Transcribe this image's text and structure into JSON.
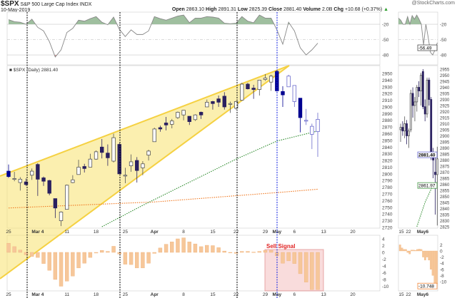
{
  "header": {
    "symbol": "$SPX",
    "name": "S&P 500 Large Cap Index",
    "exchange": "INDX",
    "date": "10-May-2019",
    "open_label": "Open",
    "open": "2863.10",
    "high_label": "High",
    "high": "2891.31",
    "low_label": "Low",
    "low": "2825.39",
    "close_label": "Close",
    "close": "2881.40",
    "volume_label": "Volume",
    "volume": "2.0B",
    "chg_label": "Chg",
    "chg": "+10.68 (+0.37%)",
    "watermark": "@StockCharts.com"
  },
  "colors": {
    "up_arrow": "#2a9d2a",
    "sell": "#e02020",
    "wedge": "#f5d142",
    "ma50": "#2e8b2e",
    "ma200": "#f07820",
    "candle": "#2a2060",
    "candle_blue": "#000090",
    "hist": "#f6c79a"
  },
  "chart_data": [
    {
      "type": "line",
      "title": "Williams %R (top panel)",
      "yticks": [
        "-20",
        "-50",
        "-80"
      ],
      "ylim": [
        -100,
        0
      ],
      "values": [
        -11,
        -15,
        -16,
        -20,
        -10,
        -26,
        -33,
        -54,
        -84,
        -70,
        -36,
        -28,
        -12,
        -14,
        -9,
        -5,
        -16,
        -21,
        -6,
        -30,
        -44,
        -31,
        -40,
        -40,
        -33,
        -5,
        -9,
        -12,
        -8,
        -4,
        -2,
        -17,
        -8,
        -8,
        -5,
        -6,
        -8,
        -18,
        -19,
        -18,
        -5,
        -14,
        -17,
        -2,
        -8,
        -8,
        -31,
        -59,
        -16,
        -33,
        -66,
        -80,
        -70,
        -57
      ]
    },
    {
      "type": "candlestick",
      "legend": "$SPX (Daily) 2881.40",
      "ylim": [
        2720,
        2960
      ],
      "yticks": [
        "2950",
        "2940",
        "2930",
        "2920",
        "2910",
        "2900",
        "2890",
        "2880",
        "2870",
        "2860",
        "2850",
        "2840",
        "2830",
        "2820",
        "2810",
        "2800",
        "2790",
        "2780",
        "2770",
        "2760",
        "2750",
        "2740",
        "2730",
        "2720"
      ],
      "xticks": [
        {
          "label": "25",
          "i": 0,
          "bold": false
        },
        {
          "label": "Mar 4",
          "i": 5,
          "bold": true
        },
        {
          "label": "11",
          "i": 10,
          "bold": false
        },
        {
          "label": "18",
          "i": 15,
          "bold": false
        },
        {
          "label": "25",
          "i": 20,
          "bold": false
        },
        {
          "label": "Apr",
          "i": 25,
          "bold": true
        },
        {
          "label": "8",
          "i": 30,
          "bold": false
        },
        {
          "label": "15",
          "i": 35,
          "bold": false
        },
        {
          "label": "22",
          "i": 39,
          "bold": false
        },
        {
          "label": "29",
          "i": 44,
          "bold": false
        },
        {
          "label": "May",
          "i": 46,
          "bold": true
        },
        {
          "label": "6",
          "i": 49,
          "bold": false
        },
        {
          "label": "13",
          "i": 54,
          "bold": false
        },
        {
          "label": "20",
          "i": 59,
          "bold": false
        }
      ],
      "ohlc": [
        [
          2804,
          2814,
          2794,
          2796
        ],
        [
          2792,
          2803,
          2789,
          2793
        ],
        [
          2787,
          2795,
          2775,
          2792
        ],
        [
          2788,
          2793,
          2782,
          2784
        ],
        [
          2798,
          2808,
          2791,
          2804
        ],
        [
          2814,
          2816,
          2767,
          2792
        ],
        [
          2794,
          2796,
          2782,
          2789
        ],
        [
          2790,
          2791,
          2768,
          2771
        ],
        [
          2763,
          2763,
          2734,
          2749
        ],
        [
          2730,
          2744,
          2722,
          2743
        ],
        [
          2747,
          2784,
          2747,
          2783
        ],
        [
          2787,
          2798,
          2786,
          2791
        ],
        [
          2799,
          2821,
          2799,
          2810
        ],
        [
          2811,
          2815,
          2802,
          2808
        ],
        [
          2810,
          2830,
          2810,
          2822
        ],
        [
          2822,
          2835,
          2821,
          2833
        ],
        [
          2840,
          2852,
          2823,
          2832
        ],
        [
          2831,
          2844,
          2812,
          2824
        ],
        [
          2819,
          2860,
          2817,
          2854
        ],
        [
          2844,
          2846,
          2800,
          2800
        ],
        [
          2797,
          2809,
          2786,
          2798
        ],
        [
          2812,
          2829,
          2803,
          2818
        ],
        [
          2820,
          2825,
          2787,
          2805
        ],
        [
          2809,
          2819,
          2798,
          2815
        ],
        [
          2828,
          2836,
          2820,
          2834
        ],
        [
          2848,
          2869,
          2848,
          2867
        ],
        [
          2869,
          2872,
          2863,
          2867
        ],
        [
          2876,
          2885,
          2865,
          2873
        ],
        [
          2874,
          2882,
          2868,
          2879
        ],
        [
          2884,
          2893,
          2882,
          2892
        ],
        [
          2888,
          2895,
          2880,
          2895
        ],
        [
          2886,
          2886,
          2873,
          2878
        ],
        [
          2881,
          2889,
          2879,
          2888
        ],
        [
          2892,
          2893,
          2882,
          2888
        ],
        [
          2900,
          2911,
          2900,
          2907
        ],
        [
          2908,
          2909,
          2896,
          2905
        ],
        [
          2912,
          2917,
          2900,
          2907
        ],
        [
          2916,
          2922,
          2896,
          2900
        ],
        [
          2904,
          2908,
          2891,
          2905
        ],
        [
          2898,
          2909,
          2896,
          2908
        ],
        [
          2910,
          2936,
          2909,
          2934
        ],
        [
          2934,
          2936,
          2926,
          2927
        ],
        [
          2928,
          2933,
          2912,
          2926
        ],
        [
          2926,
          2940,
          2917,
          2940
        ],
        [
          2941,
          2949,
          2939,
          2943
        ],
        [
          2937,
          2948,
          2924,
          2946
        ],
        [
          2953,
          2955,
          2923,
          2924
        ],
        [
          2923,
          2931,
          2900,
          2918
        ],
        [
          2930,
          2948,
          2930,
          2946
        ],
        [
          2908,
          2932,
          2900,
          2932
        ],
        [
          2913,
          2913,
          2862,
          2884
        ],
        [
          2879,
          2897,
          2873,
          2880
        ],
        [
          2859,
          2875,
          2837,
          2871
        ],
        [
          2863.1,
          2891.31,
          2825.39,
          2881.4
        ]
      ],
      "ma50": [
        [
          16,
          2721
        ],
        [
          23,
          2753
        ],
        [
          39,
          2822
        ],
        [
          46,
          2849
        ],
        [
          53,
          2864
        ]
      ],
      "ma200": [
        [
          0,
          2749
        ],
        [
          25,
          2758
        ],
        [
          46,
          2772
        ],
        [
          53,
          2777
        ]
      ]
    },
    {
      "type": "bar",
      "title": "Histogram (bottom panel)",
      "yticks": [
        "4",
        "2",
        "0",
        "-2",
        "-4",
        "-6",
        "-8",
        "-10"
      ],
      "ylim": [
        -11.5,
        5
      ],
      "values": [
        2.7,
        1.7,
        0.7,
        -0.7,
        -1.2,
        -1.5,
        -3.3,
        -5.3,
        -8,
        -10,
        -8.5,
        -7,
        -4.6,
        -3.2,
        -1.5,
        -0.2,
        0.6,
        0.3,
        1.8,
        -0.5,
        -3.5,
        -3.6,
        -4.6,
        -4.6,
        -3.2,
        -0.3,
        1.3,
        2.4,
        3.1,
        4,
        4.3,
        3.1,
        2.5,
        1.7,
        2.1,
        2,
        1.4,
        0.4,
        -0.1,
        -0.3,
        0.3,
        0.3,
        0.1,
        0.3,
        0.6,
        0.6,
        -1,
        -3.2,
        -2.5,
        -3.3,
        -6.3,
        -8.8,
        -11,
        -11
      ],
      "annotation": "Sell Signal"
    },
    {
      "type": "line",
      "title": "Mini Williams %R",
      "yticks": [
        "-20",
        "-50",
        "-80"
      ],
      "last_label": "-56.49",
      "values": [
        -8,
        -12,
        -20,
        -20,
        -5,
        -20,
        -3,
        -10,
        -2,
        -10,
        -20,
        -60,
        -20,
        -45,
        -75,
        -80,
        -70,
        -56
      ]
    },
    {
      "type": "candlestick",
      "title": "Mini intraday",
      "yticks": [
        "2955",
        "2950",
        "2945",
        "2940",
        "2935",
        "2930",
        "2925",
        "2920",
        "2915",
        "2910",
        "2905",
        "2900",
        "2895",
        "2890",
        "2885",
        "2880",
        "2875",
        "2870",
        "2865",
        "2860",
        "2855",
        "2850",
        "2845",
        "2840",
        "2835",
        "2830",
        "2825"
      ],
      "xticks": [
        "15",
        "22",
        "May6"
      ],
      "last_label": "2881.40",
      "ma_label": "2861.97",
      "ohlc": [
        [
          2905,
          2910,
          2895,
          2907
        ],
        [
          2907,
          2912,
          2900,
          2904
        ],
        [
          2904,
          2916,
          2898,
          2910
        ],
        [
          2910,
          2913,
          2893,
          2900
        ],
        [
          2900,
          2906,
          2890,
          2904
        ],
        [
          2905,
          2938,
          2903,
          2935
        ],
        [
          2935,
          2940,
          2915,
          2925
        ],
        [
          2925,
          2932,
          2912,
          2928
        ],
        [
          2928,
          2942,
          2920,
          2940
        ],
        [
          2940,
          2945,
          2932,
          2937
        ],
        [
          2937,
          2952,
          2925,
          2950
        ],
        [
          2953,
          2955,
          2922,
          2924
        ],
        [
          2924,
          2930,
          2912,
          2918
        ],
        [
          2918,
          2948,
          2915,
          2946
        ],
        [
          2946,
          2948,
          2925,
          2930
        ],
        [
          2930,
          2932,
          2880,
          2884
        ],
        [
          2884,
          2890,
          2865,
          2880
        ],
        [
          2870,
          2885,
          2835,
          2868
        ],
        [
          2868,
          2891,
          2826,
          2881
        ]
      ],
      "ma": [
        [
          8,
          2825
        ],
        [
          12,
          2845
        ],
        [
          15,
          2856
        ],
        [
          18,
          2862
        ]
      ]
    },
    {
      "type": "bar",
      "title": "Mini histogram",
      "yticks": [
        "2",
        "0",
        "-2",
        "-4",
        "-6",
        "-8",
        "-10"
      ],
      "last_label": "-10.748",
      "values": [
        2,
        1,
        0.5,
        0.5,
        -0.5,
        -1,
        0.3,
        0.3,
        0.2,
        0.5,
        0.6,
        0.5,
        -2,
        -3,
        -2,
        -3,
        -6,
        -8,
        -10.5,
        -10.7
      ]
    }
  ]
}
